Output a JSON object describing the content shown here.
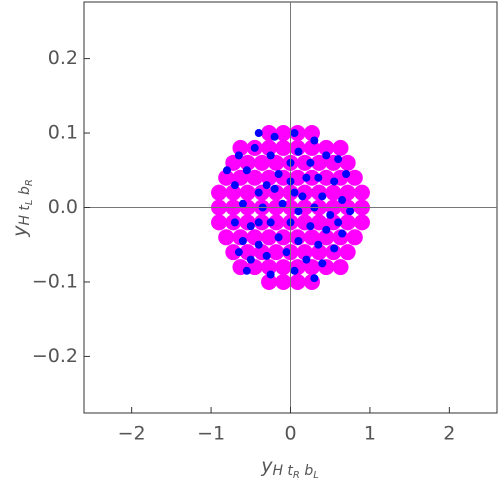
{
  "chart_data": {
    "type": "scatter",
    "x_label": [
      "y",
      "H t",
      "R",
      " b",
      "L"
    ],
    "y_label": [
      "y",
      "H t",
      "L",
      " b",
      "R"
    ],
    "xlim": [
      -2.6,
      2.6
    ],
    "ylim": [
      -0.276,
      0.276
    ],
    "xticks": [
      {
        "value": -2,
        "label": "−2"
      },
      {
        "value": -1,
        "label": "−1"
      },
      0,
      1,
      2
    ],
    "yticks": [
      {
        "value": -0.2,
        "label": "−0.2"
      },
      {
        "value": -0.1,
        "label": "−0.1"
      },
      {
        "value": 0,
        "label": "0.0"
      },
      0.1,
      0.2
    ],
    "series": [
      {
        "color": "#ff00ff",
        "x": [
          -0.9,
          -0.72,
          -0.54,
          -0.36,
          -0.18,
          0,
          0.18,
          0.36,
          0.54,
          0.72,
          0.9,
          -0.9,
          -0.72,
          -0.54,
          -0.36,
          -0.18,
          0,
          0.18,
          0.36,
          0.54,
          0.72,
          0.9,
          -0.9,
          -0.72,
          -0.54,
          -0.36,
          -0.18,
          0,
          0.18,
          0.36,
          0.54,
          0.72,
          0.9,
          -0.81,
          -0.63,
          -0.45,
          -0.27,
          -0.09,
          0.09,
          0.27,
          0.45,
          0.63,
          0.81,
          -0.81,
          -0.63,
          -0.45,
          -0.27,
          -0.09,
          0.09,
          0.27,
          0.45,
          0.63,
          0.81,
          -0.72,
          -0.54,
          -0.36,
          -0.18,
          0,
          0.18,
          0.36,
          0.54,
          0.72,
          -0.72,
          -0.54,
          -0.36,
          -0.18,
          0,
          0.18,
          0.36,
          0.54,
          0.72,
          -0.63,
          -0.45,
          -0.27,
          -0.09,
          0.09,
          0.27,
          0.45,
          0.63,
          -0.63,
          -0.45,
          -0.27,
          -0.09,
          0.09,
          0.27,
          0.45,
          0.63,
          -0.27,
          -0.09,
          0.09,
          0.27,
          -0.27,
          -0.09,
          0.09,
          0.27
        ],
        "values": [
          0,
          0,
          0,
          0,
          0,
          0,
          0,
          0,
          0,
          0,
          0,
          0.02,
          0.02,
          0.02,
          0.02,
          0.02,
          0.02,
          0.02,
          0.02,
          0.02,
          0.02,
          0.02,
          -0.02,
          -0.02,
          -0.02,
          -0.02,
          -0.02,
          -0.02,
          -0.02,
          -0.02,
          -0.02,
          -0.02,
          -0.02,
          0.04,
          0.04,
          0.04,
          0.04,
          0.04,
          0.04,
          0.04,
          0.04,
          0.04,
          0.04,
          -0.04,
          -0.04,
          -0.04,
          -0.04,
          -0.04,
          -0.04,
          -0.04,
          -0.04,
          -0.04,
          -0.04,
          0.06,
          0.06,
          0.06,
          0.06,
          0.06,
          0.06,
          0.06,
          0.06,
          0.06,
          -0.06,
          -0.06,
          -0.06,
          -0.06,
          -0.06,
          -0.06,
          -0.06,
          -0.06,
          -0.06,
          0.08,
          0.08,
          0.08,
          0.08,
          0.08,
          0.08,
          0.08,
          0.08,
          -0.08,
          -0.08,
          -0.08,
          -0.08,
          -0.08,
          -0.08,
          -0.08,
          -0.08,
          0.1,
          0.1,
          0.1,
          0.1,
          -0.1,
          -0.1,
          -0.1,
          -0.1
        ]
      },
      {
        "color": "#0000ff",
        "x": [
          -0.4,
          -0.2,
          0.05,
          0.3,
          -0.65,
          -0.45,
          -0.25,
          0.1,
          0.25,
          0.45,
          0.6,
          -0.8,
          -0.55,
          -0.3,
          -0.15,
          0.0,
          0.2,
          0.35,
          0.55,
          0.7,
          -0.7,
          -0.4,
          -0.2,
          0.05,
          0.15,
          0.4,
          0.65,
          -0.6,
          -0.35,
          -0.1,
          0.1,
          0.3,
          0.5,
          0.75,
          -0.7,
          -0.5,
          -0.25,
          0.0,
          0.25,
          0.45,
          0.65,
          -0.6,
          -0.4,
          -0.15,
          0.1,
          0.35,
          0.55,
          -0.5,
          -0.3,
          -0.05,
          0.2,
          0.4,
          -0.55,
          -0.25,
          0.05,
          0.3,
          -0.4,
          0.0,
          -0.65,
          0.6
        ],
        "values": [
          0.1,
          0.095,
          0.1,
          0.09,
          0.07,
          0.08,
          0.07,
          0.075,
          0.06,
          0.07,
          0.065,
          0.05,
          0.05,
          0.03,
          0.045,
          0.06,
          0.04,
          0.04,
          0.035,
          0.045,
          0.03,
          0.02,
          0.025,
          0.02,
          0.015,
          0.015,
          0.01,
          0.005,
          0.0,
          0.005,
          -0.005,
          0.0,
          -0.01,
          -0.005,
          -0.02,
          -0.025,
          -0.02,
          -0.02,
          -0.025,
          -0.03,
          -0.035,
          -0.045,
          -0.05,
          -0.04,
          -0.045,
          -0.05,
          -0.055,
          -0.07,
          -0.065,
          -0.06,
          -0.07,
          -0.075,
          -0.085,
          -0.09,
          -0.085,
          -0.095,
          -0.02,
          0.035,
          -0.06,
          -0.02
        ]
      }
    ]
  }
}
